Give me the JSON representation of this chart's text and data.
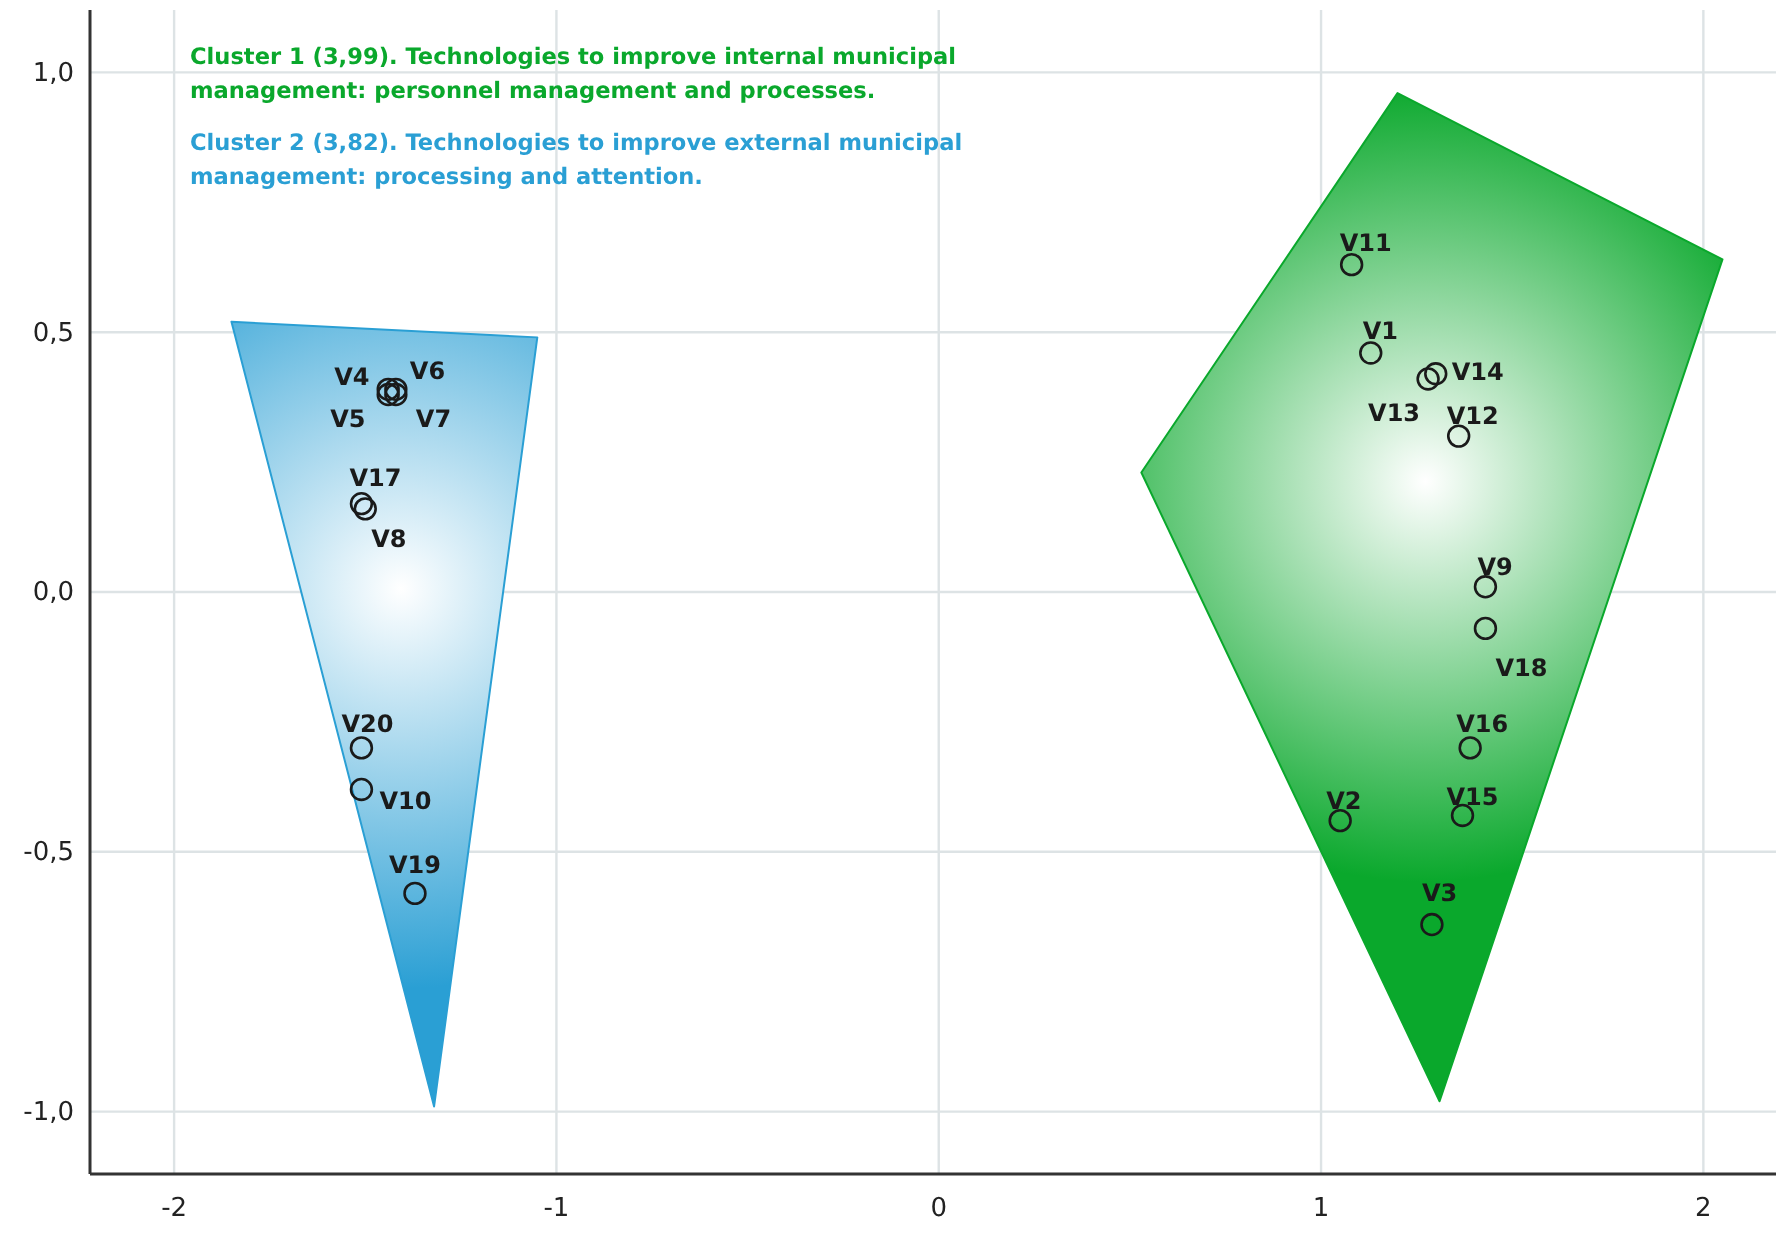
{
  "chart_data": {
    "type": "scatter",
    "xlim": [
      -2.22,
      2.19
    ],
    "ylim": [
      -1.12,
      1.12
    ],
    "xticks": [
      -2,
      -1,
      0,
      1,
      2
    ],
    "yticks": [
      {
        "value": 1,
        "label": "1,0"
      },
      {
        "value": 0.5,
        "label": "0,5"
      },
      {
        "value": 0,
        "label": "0,0"
      },
      {
        "value": -0.5,
        "label": "-0,5"
      },
      {
        "value": -1,
        "label": "-1,0"
      }
    ],
    "grid": true,
    "legend": "top left",
    "series": [
      {
        "type": "area",
        "name": "Cluster 1 (3,99). Technologies to improve internal municipal management: personnel management and processes.",
        "color": "#0aa82c",
        "x": [
          1.2,
          2.05,
          1.31,
          0.53
        ],
        "values": [
          0.96,
          0.64,
          -0.98,
          0.23
        ]
      },
      {
        "type": "area",
        "name": "Cluster 2 (3,82). Technologies to improve external municipal management: processing and attention.",
        "color": "#2a9fd4",
        "x": [
          -1.85,
          -1.05,
          -1.32
        ],
        "values": [
          0.52,
          0.49,
          -0.99
        ]
      },
      {
        "color": "#1a1a1a",
        "marker": "circle",
        "x": [
          1.08,
          1.13,
          1.3,
          1.28,
          1.36,
          1.43,
          1.43,
          1.39,
          1.37,
          1.05,
          1.29,
          -1.44,
          -1.44,
          -1.42,
          -1.42,
          -1.51,
          -1.5,
          -1.51,
          -1.51,
          -1.37
        ],
        "values": [
          0.63,
          0.46,
          0.42,
          0.41,
          0.3,
          0.01,
          -0.07,
          -0.3,
          -0.43,
          -0.44,
          -0.64,
          0.39,
          0.38,
          0.39,
          0.38,
          0.17,
          0.16,
          -0.3,
          -0.38,
          -0.58
        ]
      }
    ],
    "annotations": [
      {
        "text": "V11",
        "x": 1.08,
        "y": 0.63
      },
      {
        "text": "V1",
        "x": 1.13,
        "y": 0.46
      },
      {
        "text": "V14",
        "x": 1.3,
        "y": 0.42
      },
      {
        "text": "V13",
        "x": 1.28,
        "y": 0.41
      },
      {
        "text": "V12",
        "x": 1.36,
        "y": 0.3
      },
      {
        "text": "V9",
        "x": 1.43,
        "y": 0.01
      },
      {
        "text": "V18",
        "x": 1.43,
        "y": -0.07
      },
      {
        "text": "V16",
        "x": 1.39,
        "y": -0.3
      },
      {
        "text": "V15",
        "x": 1.37,
        "y": -0.43
      },
      {
        "text": "V2",
        "x": 1.05,
        "y": -0.44
      },
      {
        "text": "V3",
        "x": 1.29,
        "y": -0.64
      },
      {
        "text": "V4",
        "x": -1.44,
        "y": 0.39
      },
      {
        "text": "V5",
        "x": -1.44,
        "y": 0.38
      },
      {
        "text": "V6",
        "x": -1.42,
        "y": 0.39
      },
      {
        "text": "V7",
        "x": -1.42,
        "y": 0.38
      },
      {
        "text": "V17",
        "x": -1.51,
        "y": 0.17
      },
      {
        "text": "V8",
        "x": -1.5,
        "y": 0.16
      },
      {
        "text": "V20",
        "x": -1.51,
        "y": -0.3
      },
      {
        "text": "V10",
        "x": -1.51,
        "y": -0.38
      },
      {
        "text": "V19",
        "x": -1.37,
        "y": -0.58
      }
    ]
  }
}
